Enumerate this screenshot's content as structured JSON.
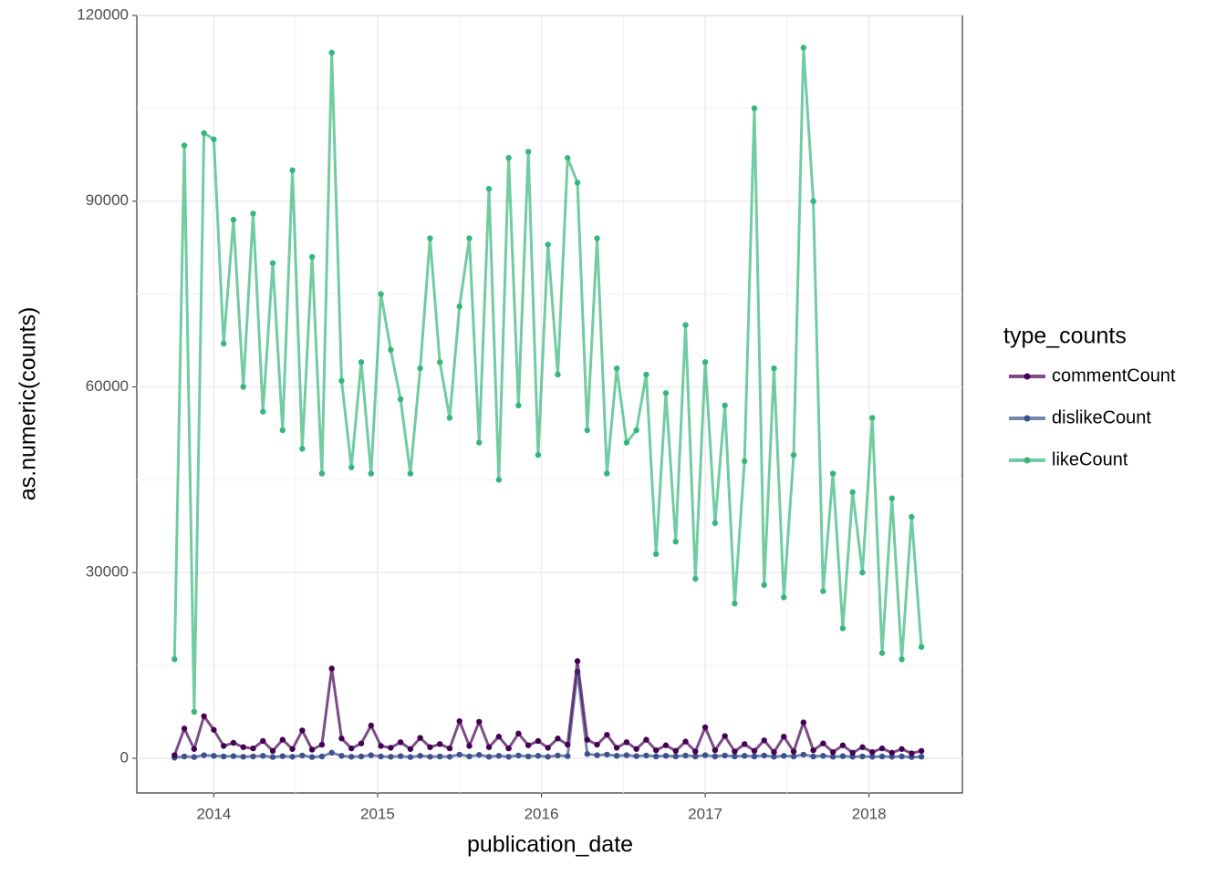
{
  "chart_data": {
    "type": "line",
    "x_label": "publication_date",
    "y_label": "as.numeric(counts)",
    "legend_title": "type_counts",
    "legend": "right",
    "grid": true,
    "xlim": [
      2013.53,
      2018.57
    ],
    "xticks": [
      2014,
      2015,
      2016,
      2017,
      2018
    ],
    "ylim": [
      -5600,
      120000
    ],
    "yticks": [
      0,
      30000,
      60000,
      90000,
      120000
    ],
    "x": [
      2013.76,
      2013.82,
      2013.88,
      2013.94,
      2014.0,
      2014.06,
      2014.12,
      2014.18,
      2014.24,
      2014.3,
      2014.36,
      2014.42,
      2014.48,
      2014.54,
      2014.6,
      2014.66,
      2014.72,
      2014.78,
      2014.84,
      2014.9,
      2014.96,
      2015.02,
      2015.08,
      2015.14,
      2015.2,
      2015.26,
      2015.32,
      2015.38,
      2015.44,
      2015.5,
      2015.56,
      2015.62,
      2015.68,
      2015.74,
      2015.8,
      2015.86,
      2015.92,
      2015.98,
      2016.04,
      2016.1,
      2016.16,
      2016.22,
      2016.28,
      2016.34,
      2016.4,
      2016.46,
      2016.52,
      2016.58,
      2016.64,
      2016.7,
      2016.76,
      2016.82,
      2016.88,
      2016.94,
      2017.0,
      2017.06,
      2017.12,
      2017.18,
      2017.24,
      2017.3,
      2017.36,
      2017.42,
      2017.48,
      2017.54,
      2017.6,
      2017.66,
      2017.72,
      2017.78,
      2017.84,
      2017.9,
      2017.96,
      2018.02,
      2018.08,
      2018.14,
      2018.2,
      2018.26,
      2018.32
    ],
    "series": [
      {
        "name": "commentCount",
        "color": "#440154",
        "values": [
          500,
          4800,
          1500,
          6800,
          4600,
          2000,
          2500,
          1800,
          1600,
          2800,
          1200,
          3000,
          1500,
          4500,
          1400,
          2200,
          14500,
          3200,
          1600,
          2400,
          5300,
          2000,
          1700,
          2600,
          1500,
          3300,
          1800,
          2300,
          1600,
          6000,
          2000,
          5900,
          1800,
          3500,
          1600,
          4000,
          2100,
          2800,
          1700,
          3200,
          2200,
          15700,
          3000,
          2200,
          3800,
          1700,
          2600,
          1500,
          3000,
          1300,
          2100,
          1200,
          2700,
          1100,
          5000,
          1300,
          3600,
          1100,
          2300,
          1200,
          2900,
          1000,
          3500,
          1100,
          5800,
          1300,
          2400,
          1000,
          2100,
          900,
          1800,
          1000,
          1600,
          900,
          1500,
          800,
          1200
        ]
      },
      {
        "name": "dislikeCount",
        "color": "#3b528b",
        "values": [
          100,
          300,
          200,
          500,
          400,
          300,
          350,
          250,
          300,
          400,
          200,
          350,
          250,
          450,
          200,
          300,
          900,
          400,
          250,
          300,
          500,
          300,
          250,
          350,
          200,
          400,
          250,
          300,
          250,
          600,
          300,
          550,
          250,
          400,
          250,
          450,
          300,
          400,
          250,
          450,
          350,
          14000,
          700,
          500,
          600,
          400,
          500,
          350,
          450,
          300,
          400,
          300,
          450,
          300,
          500,
          300,
          450,
          300,
          400,
          300,
          450,
          250,
          400,
          300,
          600,
          300,
          400,
          250,
          350,
          250,
          300,
          250,
          300,
          250,
          300,
          200,
          250
        ]
      },
      {
        "name": "likeCount",
        "color": "#35b779",
        "values": [
          16000,
          99000,
          7500,
          101000,
          100000,
          67000,
          87000,
          60000,
          88000,
          56000,
          80000,
          53000,
          95000,
          50000,
          81000,
          46000,
          114000,
          61000,
          47000,
          64000,
          46000,
          75000,
          66000,
          58000,
          46000,
          63000,
          84000,
          64000,
          55000,
          73000,
          84000,
          51000,
          92000,
          45000,
          97000,
          57000,
          98000,
          49000,
          83000,
          62000,
          97000,
          93000,
          53000,
          84000,
          46000,
          63000,
          51000,
          53000,
          62000,
          33000,
          59000,
          35000,
          70000,
          29000,
          64000,
          38000,
          57000,
          25000,
          48000,
          105000,
          28000,
          63000,
          26000,
          49000,
          114800,
          90000,
          27000,
          46000,
          21000,
          43000,
          30000,
          55000,
          17000,
          42000,
          16000,
          39000,
          18000
        ]
      }
    ]
  }
}
